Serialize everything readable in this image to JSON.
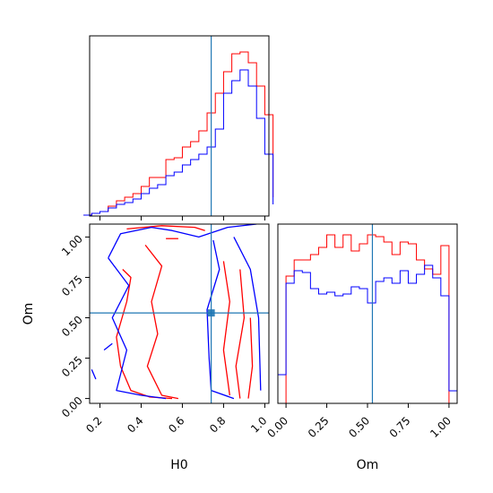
{
  "chart_data": {
    "type": "corner",
    "truth": {
      "H0": 0.74,
      "Om": 0.53
    },
    "colors": {
      "series_a": "#ff0000",
      "series_b": "#0000ff",
      "truth": "#1f77b4"
    },
    "grid": false,
    "legend": "none",
    "panels": [
      {
        "id": "H0-marginal",
        "type": "histogram",
        "xlim": [
          0.15,
          1.02
        ],
        "xticks": [
          0.2,
          0.4,
          0.6,
          0.8,
          1.0
        ],
        "show_tick_labels": false,
        "bins": [
          0.12,
          0.16,
          0.2,
          0.24,
          0.28,
          0.32,
          0.36,
          0.4,
          0.44,
          0.48,
          0.52,
          0.56,
          0.6,
          0.64,
          0.68,
          0.72,
          0.76,
          0.8,
          0.84,
          0.88,
          0.92,
          0.96,
          1.0,
          1.04
        ],
        "series": [
          {
            "values": [
              0.0,
              0.01,
              0.02,
              0.05,
              0.08,
              0.1,
              0.12,
              0.16,
              0.21,
              0.21,
              0.31,
              0.32,
              0.38,
              0.41,
              0.47,
              0.57,
              0.68,
              0.8,
              0.9,
              0.91,
              0.85,
              0.72,
              0.56,
              0.1
            ]
          },
          {
            "values": [
              0.0,
              0.01,
              0.02,
              0.04,
              0.06,
              0.07,
              0.09,
              0.12,
              0.15,
              0.17,
              0.22,
              0.24,
              0.28,
              0.31,
              0.34,
              0.38,
              0.48,
              0.68,
              0.75,
              0.81,
              0.72,
              0.54,
              0.34,
              0.06
            ]
          }
        ]
      },
      {
        "id": "H0-Om-joint",
        "type": "contour",
        "xlim": [
          0.15,
          1.02
        ],
        "ylim": [
          -0.03,
          1.08
        ],
        "xticks": [
          "0.2",
          "0.4",
          "0.6",
          "0.8",
          "1.0"
        ],
        "yticks": [
          "0.00",
          "0.25",
          "0.50",
          "0.75",
          "1.00"
        ],
        "xlabel": "H0",
        "ylabel": "Om",
        "series": [
          {
            "contours": [
              [
                [
                  0.33,
                  1.05
                ],
                [
                  0.5,
                  1.07
                ],
                [
                  0.66,
                  1.06
                ],
                [
                  0.71,
                  1.04
                ]
              ],
              [
                [
                  0.52,
                  0.99
                ],
                [
                  0.58,
                  0.99
                ]
              ],
              [
                [
                  0.31,
                  0.8
                ],
                [
                  0.35,
                  0.75
                ],
                [
                  0.33,
                  0.6
                ],
                [
                  0.28,
                  0.38
                ],
                [
                  0.3,
                  0.2
                ],
                [
                  0.35,
                  0.05
                ],
                [
                  0.44,
                  0.01
                ],
                [
                  0.55,
                  0.0
                ]
              ],
              [
                [
                  0.42,
                  0.95
                ],
                [
                  0.5,
                  0.82
                ],
                [
                  0.45,
                  0.6
                ],
                [
                  0.48,
                  0.4
                ],
                [
                  0.43,
                  0.2
                ],
                [
                  0.5,
                  0.02
                ],
                [
                  0.58,
                  0.0
                ]
              ],
              [
                [
                  0.8,
                  0.85
                ],
                [
                  0.83,
                  0.6
                ],
                [
                  0.8,
                  0.3
                ],
                [
                  0.83,
                  0.02
                ]
              ],
              [
                [
                  0.88,
                  0.8
                ],
                [
                  0.9,
                  0.5
                ],
                [
                  0.86,
                  0.2
                ],
                [
                  0.88,
                  0.0
                ]
              ],
              [
                [
                  0.93,
                  0.5
                ],
                [
                  0.94,
                  0.2
                ],
                [
                  0.92,
                  0.0
                ]
              ]
            ]
          },
          {
            "contours": [
              [
                [
                  0.24,
                  0.87
                ],
                [
                  0.3,
                  1.02
                ],
                [
                  0.45,
                  1.06
                ],
                [
                  0.55,
                  1.04
                ],
                [
                  0.68,
                  1.0
                ],
                [
                  0.82,
                  1.06
                ],
                [
                  0.96,
                  1.08
                ]
              ],
              [
                [
                  0.24,
                  0.87
                ],
                [
                  0.34,
                  0.7
                ],
                [
                  0.26,
                  0.5
                ],
                [
                  0.33,
                  0.3
                ],
                [
                  0.28,
                  0.05
                ],
                [
                  0.4,
                  0.02
                ],
                [
                  0.52,
                  0.0
                ]
              ],
              [
                [
                  0.75,
                  0.98
                ],
                [
                  0.78,
                  0.8
                ],
                [
                  0.72,
                  0.55
                ],
                [
                  0.73,
                  0.25
                ],
                [
                  0.74,
                  0.05
                ],
                [
                  0.85,
                  0.0
                ]
              ],
              [
                [
                  0.85,
                  1.0
                ],
                [
                  0.93,
                  0.8
                ],
                [
                  0.97,
                  0.5
                ],
                [
                  0.98,
                  0.05
                ]
              ],
              [
                [
                  0.22,
                  0.3
                ],
                [
                  0.26,
                  0.34
                ]
              ],
              [
                [
                  0.16,
                  0.18
                ],
                [
                  0.18,
                  0.12
                ]
              ]
            ]
          }
        ]
      },
      {
        "id": "Om-marginal",
        "type": "histogram",
        "xlim": [
          -0.05,
          1.05
        ],
        "xticks": [
          "0.00",
          "0.25",
          "0.50",
          "0.75",
          "1.00"
        ],
        "xlabel": "Om",
        "bins": [
          -0.1,
          0.0,
          0.05,
          0.1,
          0.15,
          0.2,
          0.25,
          0.3,
          0.35,
          0.4,
          0.45,
          0.5,
          0.55,
          0.6,
          0.65,
          0.7,
          0.75,
          0.8,
          0.85,
          0.9,
          0.95,
          1.0,
          1.05
        ],
        "series": [
          {
            "values": [
              0.0,
              0.71,
              0.8,
              0.8,
              0.83,
              0.87,
              0.94,
              0.87,
              0.94,
              0.85,
              0.89,
              0.94,
              0.93,
              0.9,
              0.83,
              0.9,
              0.89,
              0.8,
              0.75,
              0.72,
              0.88,
              0.0
            ]
          },
          {
            "values": [
              0.16,
              0.67,
              0.74,
              0.73,
              0.64,
              0.61,
              0.62,
              0.6,
              0.61,
              0.65,
              0.64,
              0.56,
              0.68,
              0.7,
              0.67,
              0.74,
              0.67,
              0.72,
              0.77,
              0.7,
              0.6,
              0.07
            ]
          }
        ]
      }
    ]
  }
}
